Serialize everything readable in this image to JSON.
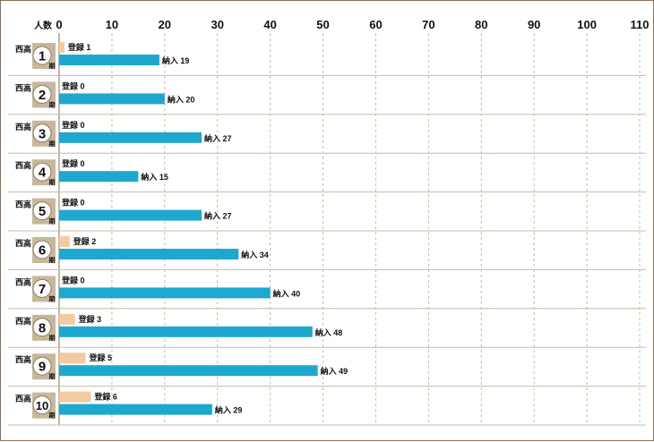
{
  "chart_data": {
    "type": "bar",
    "orientation": "horizontal",
    "y_axis_header": "人数",
    "xlim": [
      0,
      110
    ],
    "x_ticks": [
      "0",
      "10",
      "20",
      "30",
      "40",
      "50",
      "60",
      "70",
      "80",
      "90",
      "100",
      "110"
    ],
    "school_label": "西高",
    "period_suffix": "期",
    "categories": [
      "1",
      "2",
      "3",
      "4",
      "5",
      "6",
      "7",
      "8",
      "9",
      "10"
    ],
    "series": [
      {
        "name": "登録",
        "values": [
          1,
          0,
          0,
          0,
          0,
          2,
          0,
          3,
          5,
          6
        ],
        "color": "#f2cba0"
      },
      {
        "name": "納入",
        "values": [
          19,
          20,
          27,
          15,
          27,
          34,
          40,
          48,
          49,
          29
        ],
        "color": "#1ea8cf"
      }
    ],
    "grid": true
  }
}
